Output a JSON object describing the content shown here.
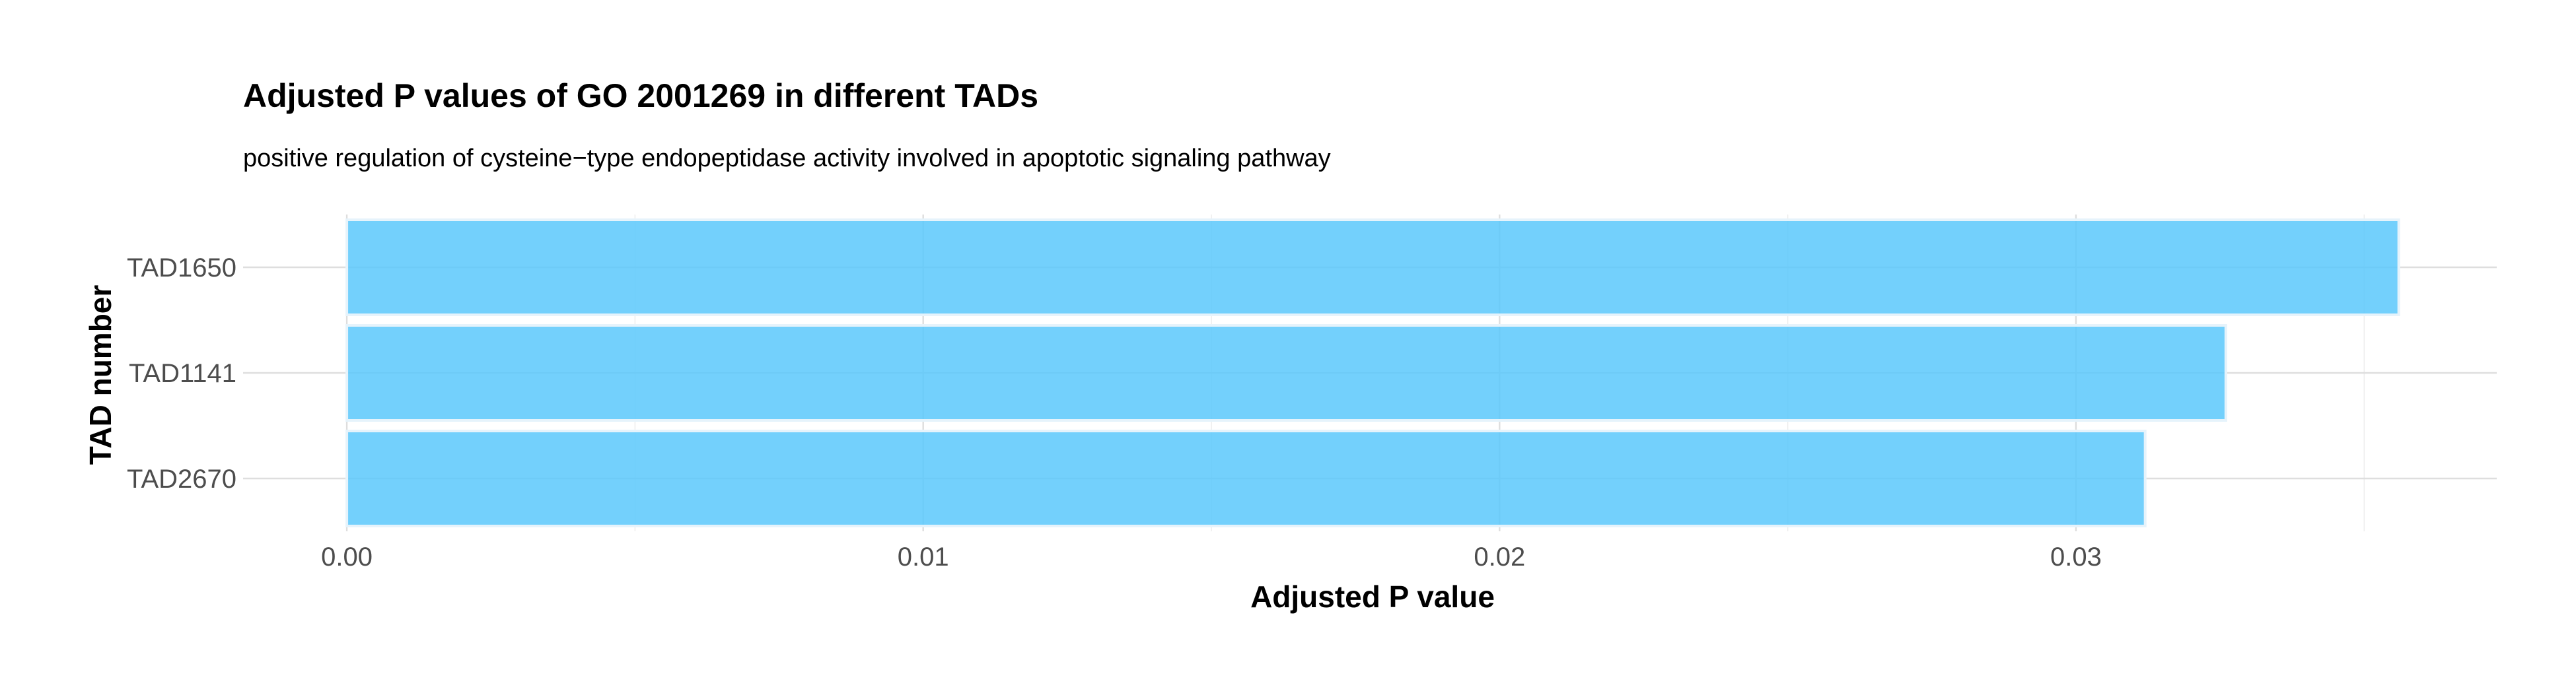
{
  "chart_data": {
    "type": "bar",
    "orientation": "horizontal",
    "title": "Adjusted P values of GO 2001269 in different TADs",
    "subtitle": "positive regulation of cysteine−type endopeptidase activity involved in apoptotic signaling pathway",
    "xlabel": "Adjusted P value",
    "ylabel": "TAD number",
    "categories": [
      "TAD1650",
      "TAD1141",
      "TAD2670"
    ],
    "values": [
      0.0356,
      0.0326,
      0.0312
    ],
    "xlim": [
      -0.0018,
      0.0373
    ],
    "x_ticks": [
      0.0,
      0.01,
      0.02,
      0.03
    ],
    "x_tick_labels": [
      "0.00",
      "0.01",
      "0.02",
      "0.03"
    ],
    "x_minor_ticks": [
      0.005,
      0.015,
      0.025,
      0.035
    ],
    "grid": true,
    "legend": "none",
    "colors": {
      "bar_fill": "#5bc8fb",
      "bar_outline": "#e6f3fb",
      "grid": "#dedede"
    }
  }
}
